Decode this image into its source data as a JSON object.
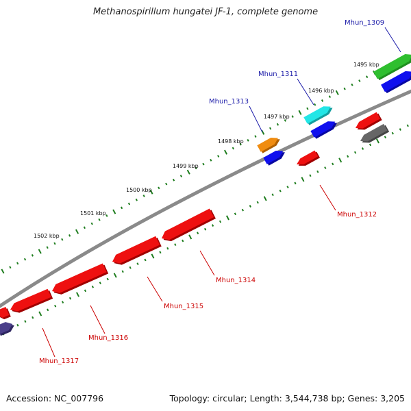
{
  "title": "Methanospirillum hungatei JF-1, complete genome",
  "footer": {
    "accession": "Accession: NC_007796",
    "summary": "Topology: circular; Length: 3,544,738 bp; Genes: 3,205"
  },
  "colors": {
    "backbone": "#8a8a8a",
    "tick": "#1e7d1e",
    "label_forward": "#1a1aa8",
    "label_reverse": "#cc0000"
  },
  "ticks": [
    {
      "label": "1495 kbp"
    },
    {
      "label": "1496 kbp"
    },
    {
      "label": "1497 kbp"
    },
    {
      "label": "1498 kbp"
    },
    {
      "label": "1499 kbp"
    },
    {
      "label": "1500 kbp"
    },
    {
      "label": "1501 kbp"
    },
    {
      "label": "1502 kbp"
    }
  ],
  "gene_labels": [
    {
      "text": "Mhun_1309",
      "strand": "forward"
    },
    {
      "text": "Mhun_1311",
      "strand": "forward"
    },
    {
      "text": "Mhun_1313",
      "strand": "forward"
    },
    {
      "text": "Mhun_1312",
      "strand": "reverse"
    },
    {
      "text": "Mhun_1314",
      "strand": "reverse"
    },
    {
      "text": "Mhun_1315",
      "strand": "reverse"
    },
    {
      "text": "Mhun_1316",
      "strand": "reverse"
    },
    {
      "text": "Mhun_1317",
      "strand": "reverse"
    }
  ],
  "features": [
    {
      "name": "Mhun_1309",
      "strand": "forward",
      "color": "#2fbf2f",
      "shade": "#1f8f1f"
    },
    {
      "name": "Mhun_1309-cds",
      "strand": "forward",
      "color": "#1010ee",
      "shade": "#0808a0"
    },
    {
      "name": "Mhun_1311",
      "strand": "forward",
      "color": "#22e6e6",
      "shade": "#12a0a0"
    },
    {
      "name": "Mhun_1311-cds",
      "strand": "forward",
      "color": "#1010ee",
      "shade": "#0808a0"
    },
    {
      "name": "Mhun_1313",
      "strand": "forward",
      "color": "#f08c10",
      "shade": "#b06000"
    },
    {
      "name": "Mhun_1313-cds",
      "strand": "forward",
      "color": "#1010ee",
      "shade": "#0808a0"
    },
    {
      "name": "unlabeled-red-1",
      "strand": "reverse",
      "color": "#ee1010",
      "shade": "#a00000"
    },
    {
      "name": "unlabeled-gray",
      "strand": "reverse",
      "color": "#666666",
      "shade": "#444444"
    },
    {
      "name": "Mhun_1312",
      "strand": "reverse",
      "color": "#ee1010",
      "shade": "#a00000"
    },
    {
      "name": "Mhun_1314",
      "strand": "reverse",
      "color": "#ee1010",
      "shade": "#a00000"
    },
    {
      "name": "Mhun_1315a",
      "strand": "reverse",
      "color": "#ee1010",
      "shade": "#a00000"
    },
    {
      "name": "Mhun_1315",
      "strand": "reverse",
      "color": "#ee1010",
      "shade": "#a00000"
    },
    {
      "name": "Mhun_1316",
      "strand": "reverse",
      "color": "#ee1010",
      "shade": "#a00000"
    },
    {
      "name": "Mhun_1317",
      "strand": "reverse",
      "color": "#ee1010",
      "shade": "#a00000"
    },
    {
      "name": "Mhun_1317-partner",
      "strand": "reverse",
      "color": "#4a3f8a",
      "shade": "#2e2560"
    }
  ]
}
